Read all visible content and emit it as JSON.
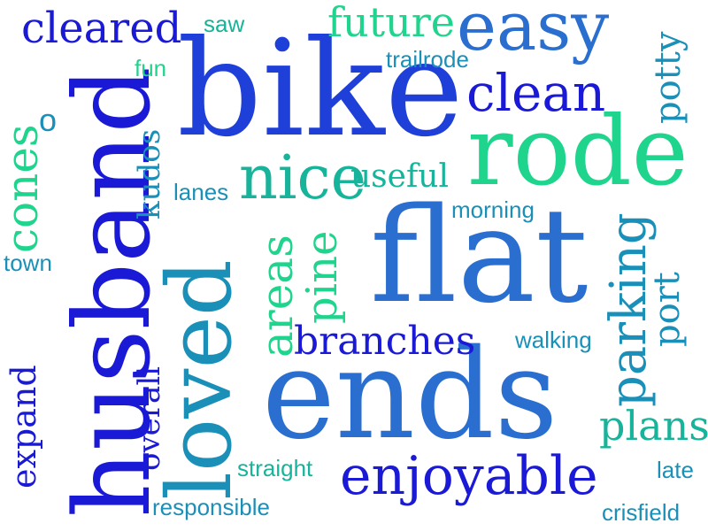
{
  "word_cloud": {
    "palette": {
      "royal_blue": "#1a1ad6",
      "blue": "#1f3fd9",
      "mid_blue": "#2a6fd0",
      "teal_blue": "#1a90b8",
      "teal": "#17b39a",
      "mint": "#1fd48c"
    },
    "words": [
      {
        "text": "bike",
        "color": "#1f3fd9"
      },
      {
        "text": "flat",
        "color": "#2a6fd0"
      },
      {
        "text": "ends",
        "color": "#2a6fd0"
      },
      {
        "text": "rode",
        "color": "#1fd48c"
      },
      {
        "text": "husband",
        "color": "#1a1ad6"
      },
      {
        "text": "loved",
        "color": "#1a90b8"
      },
      {
        "text": "easy",
        "color": "#2a6fd0"
      },
      {
        "text": "nice",
        "color": "#17b39a"
      },
      {
        "text": "clean",
        "color": "#1a1ad6"
      },
      {
        "text": "enjoyable",
        "color": "#1a1ad6"
      },
      {
        "text": "parking",
        "color": "#1a90b8"
      },
      {
        "text": "cleared",
        "color": "#1a1ad6"
      },
      {
        "text": "future",
        "color": "#1fd48c"
      },
      {
        "text": "branches",
        "color": "#1a1ad6"
      },
      {
        "text": "plans",
        "color": "#17b39a"
      },
      {
        "text": "areas",
        "color": "#1fd48c"
      },
      {
        "text": "pine",
        "color": "#1fd48c"
      },
      {
        "text": "cones",
        "color": "#1fd48c"
      },
      {
        "text": "useful",
        "color": "#17b39a"
      },
      {
        "text": "potty",
        "color": "#1a90b8"
      },
      {
        "text": "port",
        "color": "#1a90b8"
      },
      {
        "text": "expand",
        "color": "#1a1ad6"
      },
      {
        "text": "overall",
        "color": "#1a1ad6"
      },
      {
        "text": "kudos",
        "color": "#1a90b8"
      },
      {
        "text": "fun",
        "color": "#1fd48c"
      },
      {
        "text": "saw",
        "color": "#17b39a"
      },
      {
        "text": "trailrode",
        "color": "#1a90b8"
      },
      {
        "text": "o",
        "color": "#1a90b8"
      },
      {
        "text": "lanes",
        "color": "#1a90b8"
      },
      {
        "text": "morning",
        "color": "#1a90b8"
      },
      {
        "text": "town",
        "color": "#1a90b8"
      },
      {
        "text": "walking",
        "color": "#1a90b8"
      },
      {
        "text": "straight",
        "color": "#17b39a"
      },
      {
        "text": "late",
        "color": "#1a90b8"
      },
      {
        "text": "responsible",
        "color": "#1a90b8"
      },
      {
        "text": "crisfield",
        "color": "#1a90b8"
      }
    ]
  }
}
